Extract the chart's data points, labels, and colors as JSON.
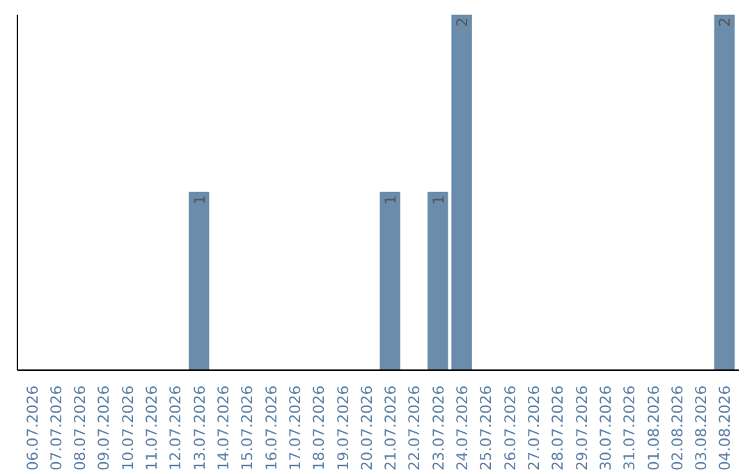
{
  "chart_data": {
    "type": "bar",
    "categories": [
      "06.07.2026",
      "07.07.2026",
      "08.07.2026",
      "09.07.2026",
      "10.07.2026",
      "11.07.2026",
      "12.07.2026",
      "13.07.2026",
      "14.07.2026",
      "15.07.2026",
      "16.07.2026",
      "17.07.2026",
      "18.07.2026",
      "19.07.2026",
      "20.07.2026",
      "21.07.2026",
      "22.07.2026",
      "23.07.2026",
      "24.07.2026",
      "25.07.2026",
      "26.07.2026",
      "27.07.2026",
      "28.07.2026",
      "29.07.2026",
      "30.07.2026",
      "31.07.2026",
      "01.08.2026",
      "02.08.2026",
      "03.08.2026",
      "04.08.2026"
    ],
    "values": [
      0,
      0,
      0,
      0,
      0,
      0,
      0,
      1,
      0,
      0,
      0,
      0,
      0,
      0,
      0,
      1,
      0,
      1,
      2,
      0,
      0,
      0,
      0,
      0,
      0,
      0,
      0,
      0,
      0,
      2
    ],
    "value_labels": [
      null,
      null,
      null,
      null,
      null,
      null,
      null,
      "1",
      null,
      null,
      null,
      null,
      null,
      null,
      null,
      "1",
      null,
      "1",
      "2",
      null,
      null,
      null,
      null,
      null,
      null,
      null,
      null,
      null,
      null,
      "2"
    ],
    "color": "#6b8cab",
    "grid": false,
    "tick_labels": "x"
  }
}
